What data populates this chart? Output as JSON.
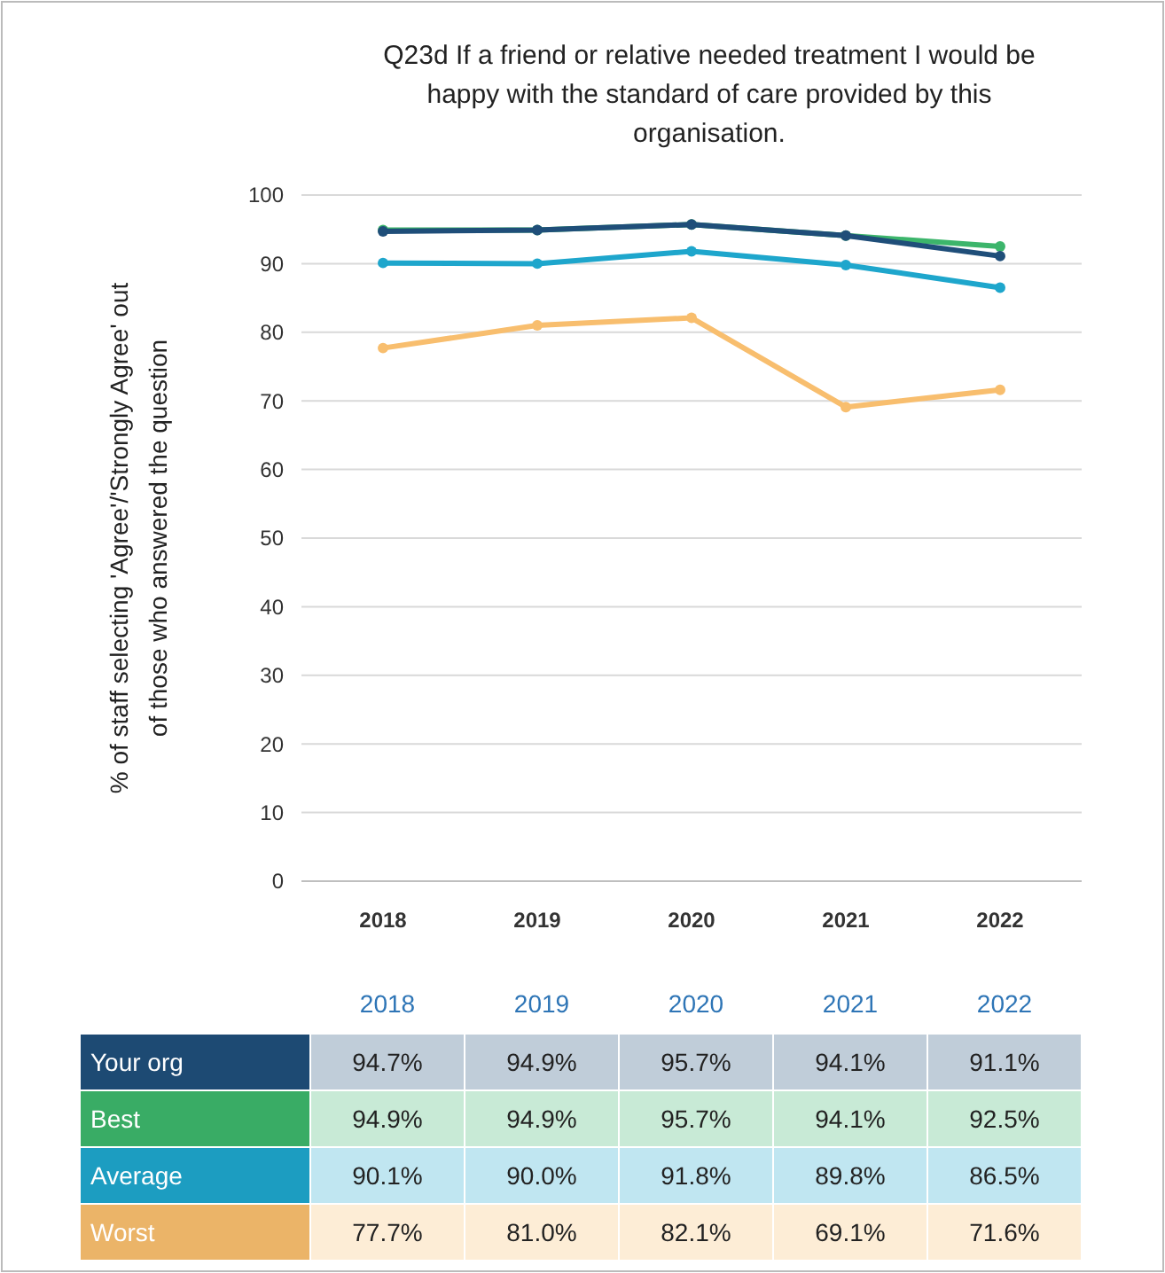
{
  "chart_data": {
    "type": "line",
    "title": "Q23d If a friend or relative needed treatment I would be happy with the standard of care provided by this organisation.",
    "ylabel": "% of staff selecting 'Agree'/'Strongly Agree' out of those who answered the question",
    "categories": [
      "2018",
      "2019",
      "2020",
      "2021",
      "2022"
    ],
    "ylim": [
      0,
      100
    ],
    "yticks": [
      0,
      10,
      20,
      30,
      40,
      50,
      60,
      70,
      80,
      90,
      100
    ],
    "grid": "y",
    "marker": "circle",
    "series": [
      {
        "name": "Your org",
        "color": "#1f4e79",
        "values": [
          94.7,
          94.9,
          95.7,
          94.1,
          91.1
        ],
        "value_labels": [
          "94.7%",
          "94.9%",
          "95.7%",
          "94.1%",
          "91.1%"
        ]
      },
      {
        "name": "Best",
        "color": "#3cb56b",
        "values": [
          94.9,
          94.9,
          95.7,
          94.1,
          92.5
        ],
        "value_labels": [
          "94.9%",
          "94.9%",
          "95.7%",
          "94.1%",
          "92.5%"
        ]
      },
      {
        "name": "Average",
        "color": "#1ea6cc",
        "values": [
          90.1,
          90.0,
          91.8,
          89.8,
          86.5
        ],
        "value_labels": [
          "90.1%",
          "90.0%",
          "91.8%",
          "89.8%",
          "86.5%"
        ]
      },
      {
        "name": "Worst",
        "color": "#f8be6e",
        "values": [
          77.7,
          81.0,
          82.1,
          69.1,
          71.6
        ],
        "value_labels": [
          "77.7%",
          "81.0%",
          "82.1%",
          "69.1%",
          "71.6%"
        ]
      }
    ]
  }
}
